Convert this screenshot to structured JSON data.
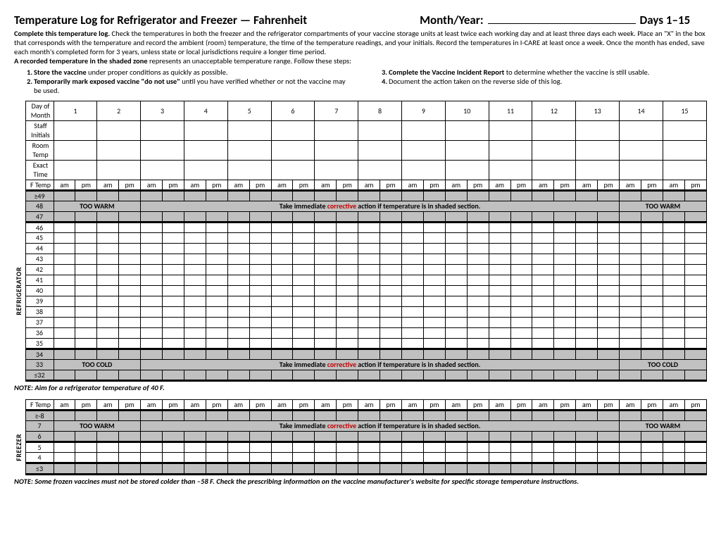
{
  "title": "Temperature Log for Refrigerator and Freezer — Fahrenheit",
  "month_year_label": "Month/Year:",
  "days_label": "Days 1–15",
  "instructions": {
    "p1_bold": "Complete this temperature log.",
    "p1_rest": " Check the temperatures in both the freezer and the refrigerator compartments of your vaccine storage units at least twice each working day and at least three days each week. Place an \"X\" in the box that corresponds with the temperature and record the ambient (room) temperature, the time of the temperature readings, and your initials. Record the temperatures in I-CARE at least once a week.  Once the month has ended, save each month's completed form for 3 years, unless state or local jurisdictions require a longer time period.",
    "p2_bold": "A recorded temperature in the shaded zone",
    "p2_rest": " represents an unacceptable temperature range. Follow these steps:"
  },
  "steps": [
    {
      "n": "1.",
      "b": "Store the vaccine",
      "t": " under proper conditions as quickly as possible."
    },
    {
      "n": "2.",
      "b": "Temporarily mark exposed vaccine \"do not use\"",
      "t": " until you have verified whether or not the vaccine may be used."
    },
    {
      "n": "3.",
      "b": "Complete the Vaccine Incident Report",
      "t": " to determine whether the vaccine is still usable."
    },
    {
      "n": "4.",
      "b": "",
      "t": "Document the action taken on the reverse side of this log."
    }
  ],
  "header_rows": [
    "Day of Month",
    "Staff Initials",
    "Room Temp",
    "Exact Time",
    "F Temp"
  ],
  "days": [
    "1",
    "2",
    "3",
    "4",
    "5",
    "6",
    "7",
    "8",
    "9",
    "10",
    "11",
    "12",
    "13",
    "14",
    "15"
  ],
  "ampm": [
    "am",
    "pm"
  ],
  "refrigerator": {
    "label": "REFRIGERATOR",
    "warm_rows": [
      "≥49",
      "48",
      "47"
    ],
    "normal_rows": [
      "46",
      "45",
      "44",
      "43",
      "42",
      "41",
      "40",
      "39",
      "38",
      "37",
      "36",
      "35"
    ],
    "cold_rows": [
      "34",
      "33",
      "≤32"
    ],
    "too_warm": "TOO WARM",
    "too_cold": "TOO COLD",
    "msg_pre": "Take immediate ",
    "msg_red": "corrective",
    "msg_post": " action if temperature is in shaded section."
  },
  "freezer": {
    "label": "FREEZER",
    "warm_rows": [
      "≥-8",
      "7",
      "6"
    ],
    "normal_rows": [
      "5",
      "4"
    ],
    "cold_rows": [
      "≤3"
    ],
    "too_warm": "TOO WARM",
    "msg_pre": "Take immediate ",
    "msg_red": "corrective",
    "msg_post": " action if temperature is in shaded section."
  },
  "note1": "NOTE:  Aim for a refrigerator temperature of 40 F.",
  "note2": "NOTE:  Some frozen vaccines must not be stored colder than –58 F.  Check the prescribing information on the vaccine manufacturer's website for specific storage temperature instructions.",
  "ftemp_label": "F Temp"
}
